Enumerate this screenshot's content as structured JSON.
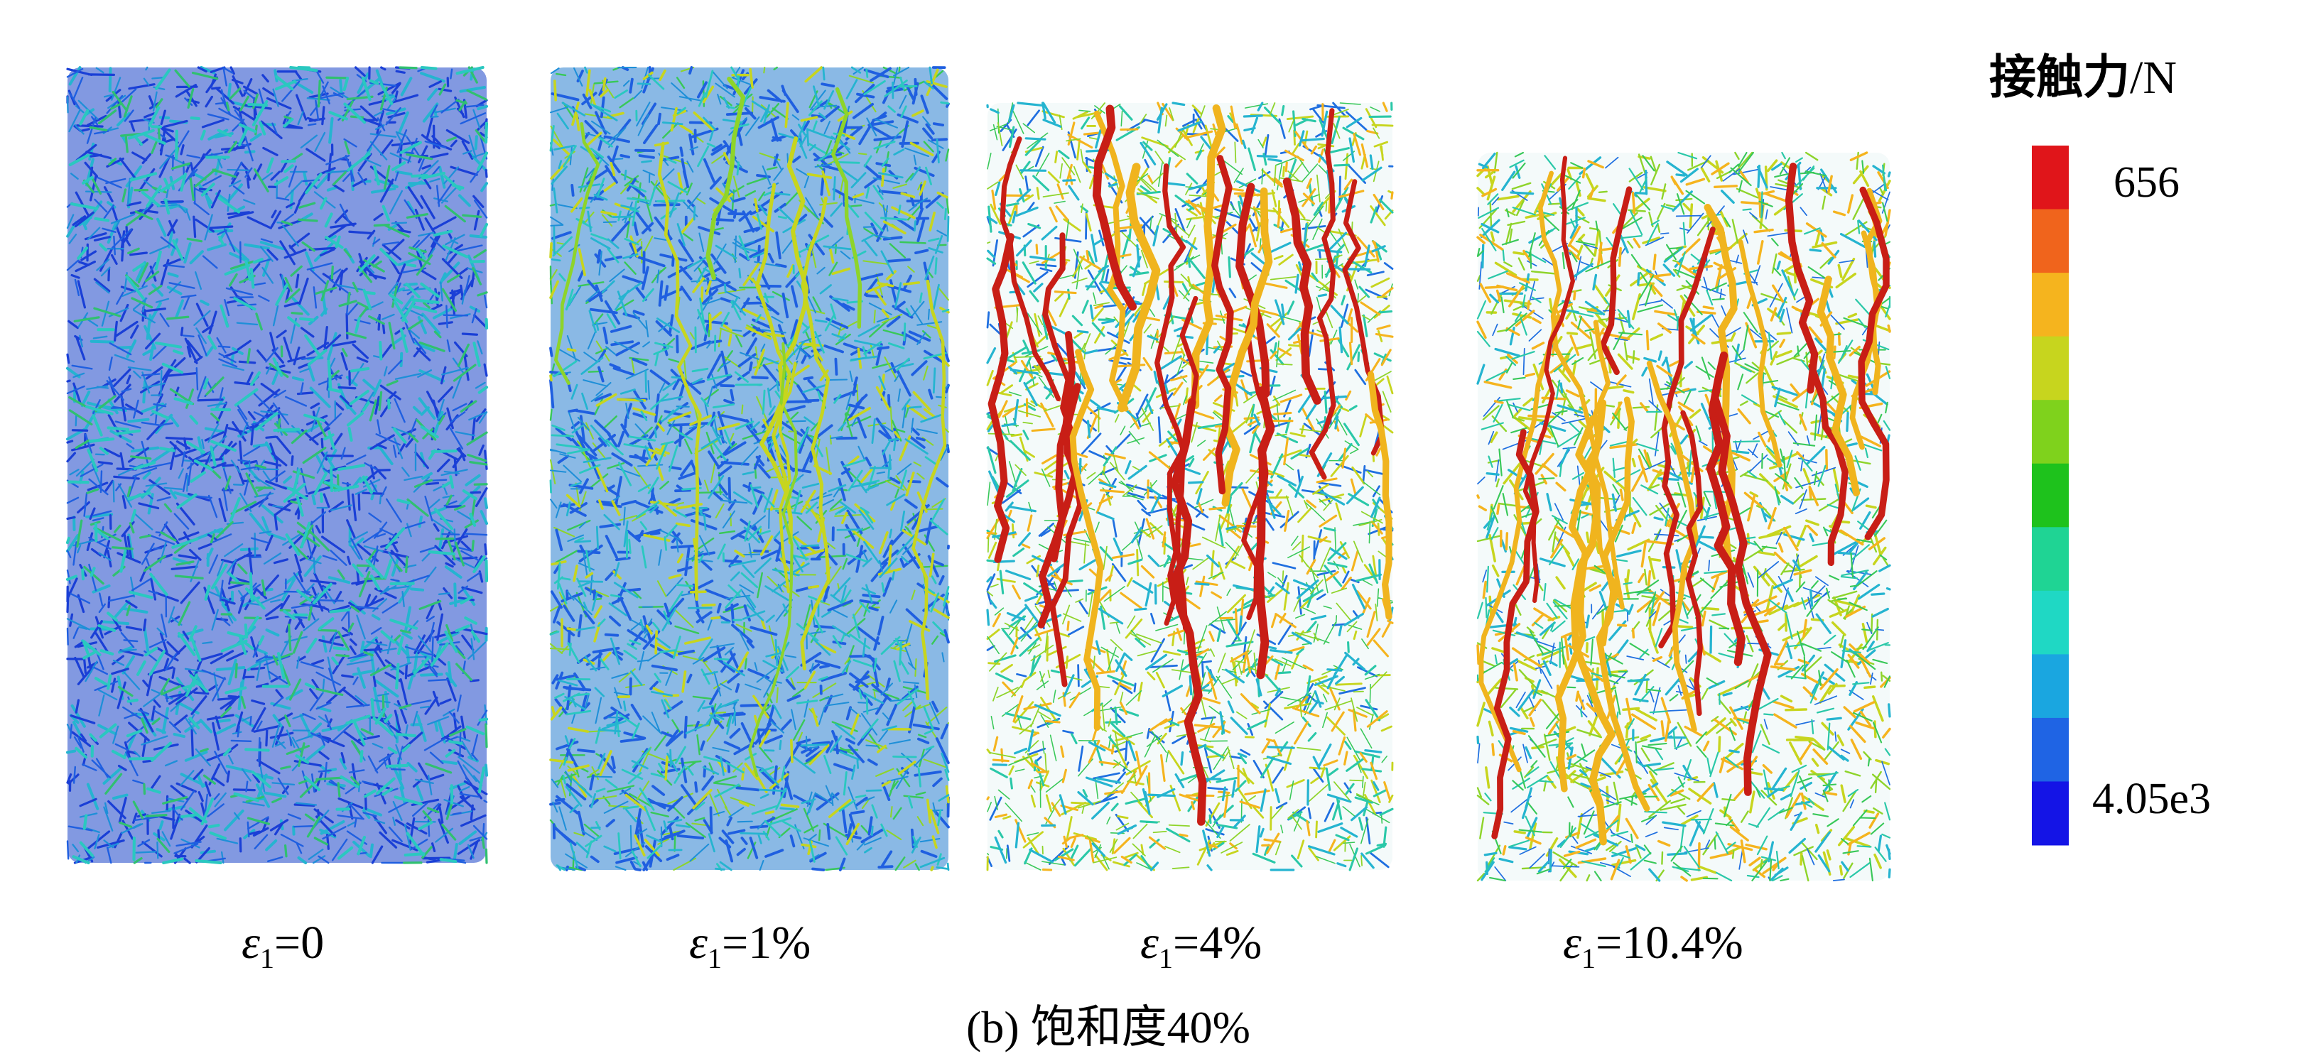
{
  "legend": {
    "title": "接触力",
    "unit": "/N",
    "max_label": "656",
    "min_label": "4.05e3",
    "colors": [
      "#e0151a",
      "#f0641c",
      "#f5b41e",
      "#c7d51e",
      "#7fd21c",
      "#1ec21c",
      "#1fd494",
      "#1fd8c4",
      "#1aa6e0",
      "#1f64e4",
      "#1414e6"
    ]
  },
  "panels": [
    {
      "symbol": "ε",
      "subscript": "1",
      "value": "=0",
      "palette": [
        "#1a3fd6",
        "#1f5fe0",
        "#1e8fd8",
        "#25b4d0",
        "#2ac8c0",
        "#30c070"
      ]
    },
    {
      "symbol": "ε",
      "subscript": "1",
      "value": "=1%",
      "palette": [
        "#1f5fe0",
        "#1e8fd8",
        "#25b4d0",
        "#2ac8c0",
        "#38c858",
        "#8ed42a",
        "#c7d51e"
      ]
    },
    {
      "symbol": "ε",
      "subscript": "1",
      "value": "=4%",
      "palette": [
        "#1f6fe0",
        "#25b4d0",
        "#2ac8a8",
        "#38c858",
        "#8ed42a",
        "#c7d51e",
        "#f5b41e",
        "#d42418"
      ]
    },
    {
      "symbol": "ε",
      "subscript": "1",
      "value": "=10.4%",
      "palette": [
        "#1f6fe0",
        "#25b4d0",
        "#2ac8a8",
        "#38c858",
        "#8ed42a",
        "#c7d51e",
        "#f5b41e",
        "#d42418"
      ]
    }
  ],
  "caption": "(b) 饱和度40%"
}
